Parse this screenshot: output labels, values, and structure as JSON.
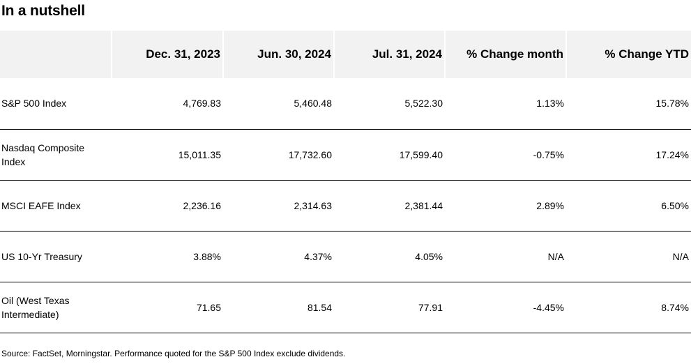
{
  "title": "In a nutshell",
  "table": {
    "headers": [
      "",
      "Dec. 31, 2023",
      "Jun. 30, 2024",
      "Jul. 31, 2024",
      "% Change month",
      "% Change YTD"
    ],
    "rows": [
      [
        "S&P 500 Index",
        "4,769.83",
        "5,460.48",
        "5,522.30",
        "1.13%",
        "15.78%"
      ],
      [
        "Nasdaq Composite Index",
        "15,011.35",
        "17,732.60",
        "17,599.40",
        "-0.75%",
        "17.24%"
      ],
      [
        "MSCI EAFE Index",
        "2,236.16",
        "2,314.63",
        "2,381.44",
        "2.89%",
        "6.50%"
      ],
      [
        "US 10-Yr Treasury",
        "3.88%",
        "4.37%",
        "4.05%",
        "N/A",
        "N/A"
      ],
      [
        "Oil (West Texas Intermediate)",
        "71.65",
        "81.54",
        "77.91",
        "-4.45%",
        "8.74%"
      ]
    ]
  },
  "footnote": "Source: FactSet, Morningstar. Performance quoted for the S&P 500 Index exclude dividends.",
  "colors": {
    "header_background": "#f2f2f2",
    "row_divider": "#000000",
    "text": "#000000"
  }
}
